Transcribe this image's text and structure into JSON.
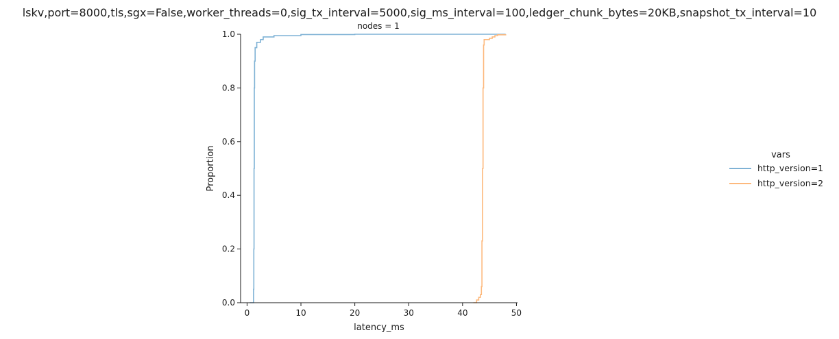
{
  "figure": {
    "suptitle": "lskv,port=8000,tls,sgx=False,worker_threads=0,sig_tx_interval=5000,sig_ms_interval=100,ledger_chunk_bytes=20KB,snapshot_tx_interval=10"
  },
  "chart_data": {
    "type": "line",
    "subtype": "ecdf",
    "title": "nodes = 1",
    "xlabel": "latency_ms",
    "ylabel": "Proportion",
    "xlim": [
      -1.2,
      50.2
    ],
    "ylim": [
      0,
      1
    ],
    "xticks": [
      "0",
      "10",
      "20",
      "30",
      "40",
      "50"
    ],
    "xtick_values": [
      0,
      10,
      20,
      30,
      40,
      50
    ],
    "yticks": [
      "0.0",
      "0.2",
      "0.4",
      "0.6",
      "0.8",
      "1.0"
    ],
    "ytick_values": [
      0,
      0.2,
      0.4,
      0.6,
      0.8,
      1.0
    ],
    "grid": false,
    "legend": {
      "title": "vars",
      "placement": "right"
    },
    "series": [
      {
        "name": "http_version=1",
        "color": "#7fb2d5",
        "points": [
          [
            0.5,
            0.0
          ],
          [
            1.1,
            0.0
          ],
          [
            1.2,
            0.05
          ],
          [
            1.25,
            0.2
          ],
          [
            1.3,
            0.5
          ],
          [
            1.35,
            0.8
          ],
          [
            1.4,
            0.9
          ],
          [
            1.5,
            0.95
          ],
          [
            1.8,
            0.97
          ],
          [
            2.5,
            0.98
          ],
          [
            3.0,
            0.99
          ],
          [
            5.0,
            0.995
          ],
          [
            10.0,
            0.999
          ],
          [
            20.0,
            1.0
          ],
          [
            48.0,
            1.0
          ]
        ]
      },
      {
        "name": "http_version=2",
        "color": "#fdb97d",
        "points": [
          [
            42.0,
            0.0
          ],
          [
            42.6,
            0.01
          ],
          [
            43.0,
            0.02
          ],
          [
            43.3,
            0.03
          ],
          [
            43.5,
            0.06
          ],
          [
            43.6,
            0.23
          ],
          [
            43.7,
            0.5
          ],
          [
            43.8,
            0.8
          ],
          [
            43.9,
            0.96
          ],
          [
            44.0,
            0.98
          ],
          [
            45.0,
            0.985
          ],
          [
            45.5,
            0.99
          ],
          [
            46.0,
            0.995
          ],
          [
            46.5,
            0.998
          ],
          [
            48.0,
            1.0
          ]
        ]
      }
    ]
  }
}
